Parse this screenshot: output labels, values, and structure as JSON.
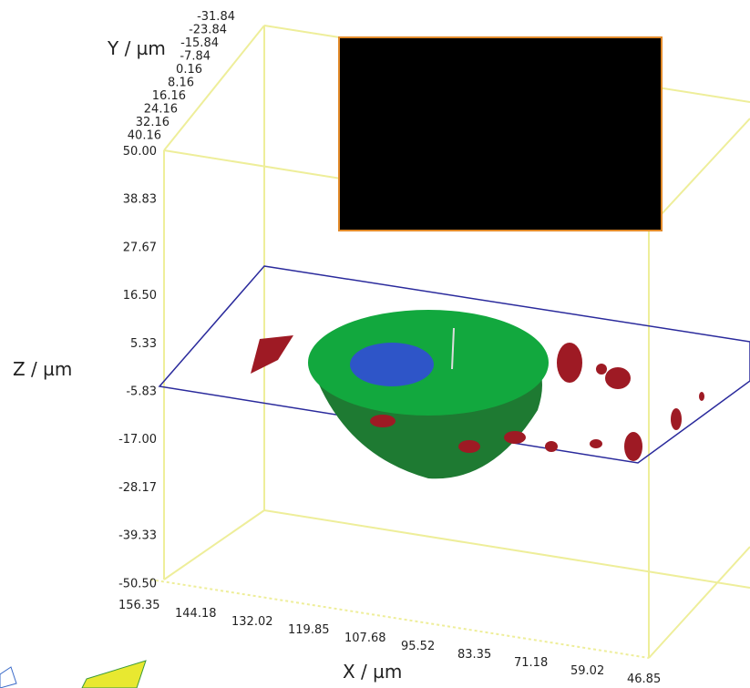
{
  "axes": {
    "x": {
      "label": "X / µm",
      "ticks": [
        "156.35",
        "144.18",
        "132.02",
        "119.85",
        "107.68",
        "95.52",
        "83.35",
        "71.18",
        "59.02",
        "46.85"
      ]
    },
    "y": {
      "label": "Y / µm",
      "ticks": [
        "-31.84",
        "-23.84",
        "-15.84",
        "-7.84",
        "0.16",
        "8.16",
        "16.16",
        "24.16",
        "32.16",
        "40.16"
      ]
    },
    "z": {
      "label": "Z / µm",
      "ticks": [
        "50.00",
        "38.83",
        "27.67",
        "16.50",
        "5.33",
        "-5.83",
        "-17.00",
        "-28.17",
        "-39.33",
        "-50.50"
      ]
    }
  }
}
